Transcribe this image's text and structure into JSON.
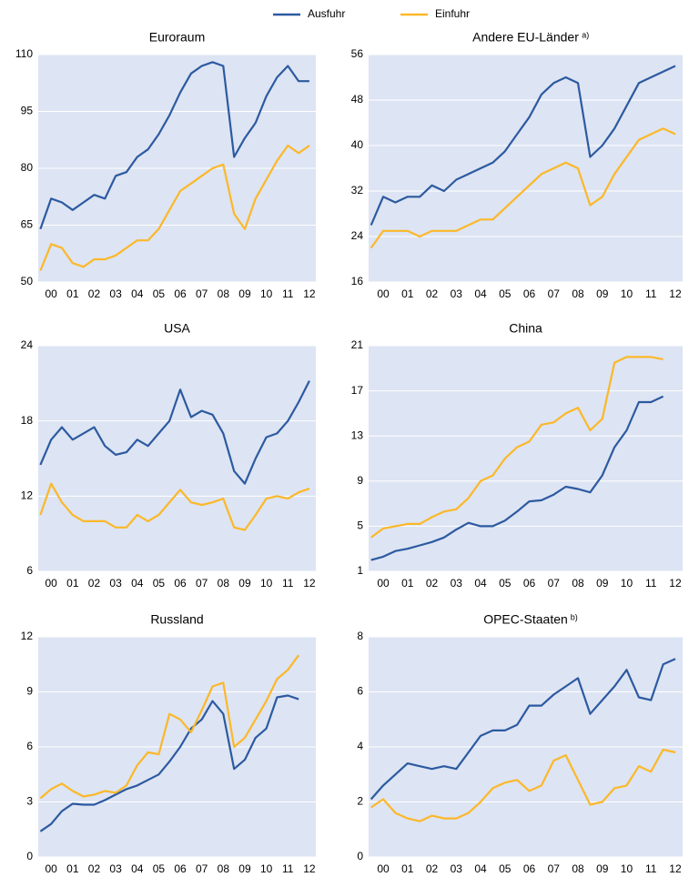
{
  "chart_data": [
    {
      "type": "line",
      "title": "Euroraum",
      "x": [
        2000,
        2000.5,
        2001,
        2001.5,
        2002,
        2002.5,
        2003,
        2003.5,
        2004,
        2004.5,
        2005,
        2005.5,
        2006,
        2006.5,
        2007,
        2007.5,
        2008,
        2008.5,
        2009,
        2009.5,
        2010,
        2010.5,
        2011,
        2011.5,
        2012,
        2012.5
      ],
      "series": [
        {
          "name": "Ausfuhr",
          "color": "#2c5aa0",
          "values": [
            64,
            72,
            71,
            69,
            71,
            73,
            72,
            78,
            79,
            83,
            85,
            89,
            94,
            100,
            105,
            107,
            108,
            107,
            83,
            88,
            92,
            99,
            104,
            107,
            103,
            103
          ]
        },
        {
          "name": "Einfuhr",
          "color": "#fbb829",
          "values": [
            53,
            60,
            59,
            55,
            54,
            56,
            56,
            57,
            59,
            61,
            61,
            64,
            69,
            74,
            76,
            78,
            80,
            81,
            68,
            64,
            72,
            77,
            82,
            86,
            84,
            86
          ]
        }
      ],
      "xlim": [
        1999.9,
        2012.8
      ],
      "xticks": [
        {
          "value": 2000.5,
          "label": "00"
        },
        {
          "value": 2001.5,
          "label": "01"
        },
        {
          "value": 2002.5,
          "label": "02"
        },
        {
          "value": 2003.5,
          "label": "03"
        },
        {
          "value": 2004.5,
          "label": "04"
        },
        {
          "value": 2005.5,
          "label": "05"
        },
        {
          "value": 2006.5,
          "label": "06"
        },
        {
          "value": 2007.5,
          "label": "07"
        },
        {
          "value": 2008.5,
          "label": "08"
        },
        {
          "value": 2009.5,
          "label": "09"
        },
        {
          "value": 2010.5,
          "label": "10"
        },
        {
          "value": 2011.5,
          "label": "11"
        },
        {
          "value": 2012.5,
          "label": "12"
        }
      ],
      "ylim": [
        50,
        110
      ],
      "yticks": [
        50,
        65,
        80,
        95,
        110
      ],
      "grid": true
    },
    {
      "type": "line",
      "title": "Andere EU-Länder",
      "title_note": "a)",
      "x": [
        2000,
        2000.5,
        2001,
        2001.5,
        2002,
        2002.5,
        2003,
        2003.5,
        2004,
        2004.5,
        2005,
        2005.5,
        2006,
        2006.5,
        2007,
        2007.5,
        2008,
        2008.5,
        2009,
        2009.5,
        2010,
        2010.5,
        2011,
        2011.5,
        2012,
        2012.5
      ],
      "series": [
        {
          "name": "Ausfuhr",
          "color": "#2c5aa0",
          "values": [
            26,
            31,
            30,
            31,
            31,
            33,
            32,
            34,
            35,
            36,
            37,
            39,
            42,
            45,
            49,
            51,
            52,
            51,
            38,
            40,
            43,
            47,
            51,
            52,
            53,
            54
          ]
        },
        {
          "name": "Einfuhr",
          "color": "#fbb829",
          "values": [
            22,
            25,
            25,
            25,
            24,
            25,
            25,
            25,
            26,
            27,
            27,
            29,
            31,
            33,
            35,
            36,
            37,
            36,
            29.5,
            31,
            35,
            38,
            41,
            42,
            43,
            42
          ]
        }
      ],
      "xlim": [
        1999.9,
        2012.8
      ],
      "xticks": [
        {
          "value": 2000.5,
          "label": "00"
        },
        {
          "value": 2001.5,
          "label": "01"
        },
        {
          "value": 2002.5,
          "label": "02"
        },
        {
          "value": 2003.5,
          "label": "03"
        },
        {
          "value": 2004.5,
          "label": "04"
        },
        {
          "value": 2005.5,
          "label": "05"
        },
        {
          "value": 2006.5,
          "label": "06"
        },
        {
          "value": 2007.5,
          "label": "07"
        },
        {
          "value": 2008.5,
          "label": "08"
        },
        {
          "value": 2009.5,
          "label": "09"
        },
        {
          "value": 2010.5,
          "label": "10"
        },
        {
          "value": 2011.5,
          "label": "11"
        },
        {
          "value": 2012.5,
          "label": "12"
        }
      ],
      "ylim": [
        16,
        56
      ],
      "yticks": [
        16,
        24,
        32,
        40,
        48,
        56
      ],
      "grid": true
    },
    {
      "type": "line",
      "title": "USA",
      "x": [
        2000,
        2000.5,
        2001,
        2001.5,
        2002,
        2002.5,
        2003,
        2003.5,
        2004,
        2004.5,
        2005,
        2005.5,
        2006,
        2006.5,
        2007,
        2007.5,
        2008,
        2008.5,
        2009,
        2009.5,
        2010,
        2010.5,
        2011,
        2011.5,
        2012,
        2012.5
      ],
      "series": [
        {
          "name": "Ausfuhr",
          "color": "#2c5aa0",
          "values": [
            14.5,
            16.5,
            17.5,
            16.5,
            17,
            17.5,
            16,
            15.3,
            15.5,
            16.5,
            16,
            17,
            18,
            20.5,
            18.3,
            18.8,
            18.5,
            17,
            14,
            13,
            15,
            16.7,
            17,
            18,
            19.5,
            21.2
          ]
        },
        {
          "name": "Einfuhr",
          "color": "#fbb829",
          "values": [
            10.5,
            13,
            11.5,
            10.5,
            10,
            10,
            10,
            9.5,
            9.5,
            10.5,
            10,
            10.5,
            11.5,
            12.5,
            11.5,
            11.3,
            11.5,
            11.8,
            9.5,
            9.3,
            10.5,
            11.8,
            12,
            11.8,
            12.3,
            12.6
          ]
        }
      ],
      "xlim": [
        1999.9,
        2012.8
      ],
      "xticks": [
        {
          "value": 2000.5,
          "label": "00"
        },
        {
          "value": 2001.5,
          "label": "01"
        },
        {
          "value": 2002.5,
          "label": "02"
        },
        {
          "value": 2003.5,
          "label": "03"
        },
        {
          "value": 2004.5,
          "label": "04"
        },
        {
          "value": 2005.5,
          "label": "05"
        },
        {
          "value": 2006.5,
          "label": "06"
        },
        {
          "value": 2007.5,
          "label": "07"
        },
        {
          "value": 2008.5,
          "label": "08"
        },
        {
          "value": 2009.5,
          "label": "09"
        },
        {
          "value": 2010.5,
          "label": "10"
        },
        {
          "value": 2011.5,
          "label": "11"
        },
        {
          "value": 2012.5,
          "label": "12"
        }
      ],
      "ylim": [
        6,
        24
      ],
      "yticks": [
        6,
        12,
        18,
        24
      ],
      "grid": true
    },
    {
      "type": "line",
      "title": "China",
      "x": [
        2000,
        2000.5,
        2001,
        2001.5,
        2002,
        2002.5,
        2003,
        2003.5,
        2004,
        2004.5,
        2005,
        2005.5,
        2006,
        2006.5,
        2007,
        2007.5,
        2008,
        2008.5,
        2009,
        2009.5,
        2010,
        2010.5,
        2011,
        2011.5,
        2012
      ],
      "series": [
        {
          "name": "Ausfuhr",
          "color": "#2c5aa0",
          "values": [
            2,
            2.3,
            2.8,
            3,
            3.3,
            3.6,
            4,
            4.7,
            5.3,
            5,
            5,
            5.5,
            6.3,
            7.2,
            7.3,
            7.8,
            8.5,
            8.3,
            8,
            9.5,
            12,
            13.5,
            16,
            16,
            16.5
          ]
        },
        {
          "name": "Einfuhr",
          "color": "#fbb829",
          "values": [
            4,
            4.8,
            5,
            5.2,
            5.2,
            5.8,
            6.3,
            6.5,
            7.5,
            9,
            9.5,
            11,
            12,
            12.5,
            14,
            14.2,
            15,
            15.5,
            13.5,
            14.5,
            19.5,
            20,
            20,
            20,
            19.8
          ]
        }
      ],
      "xlim": [
        1999.9,
        2012.8
      ],
      "xticks": [
        {
          "value": 2000.5,
          "label": "00"
        },
        {
          "value": 2001.5,
          "label": "01"
        },
        {
          "value": 2002.5,
          "label": "02"
        },
        {
          "value": 2003.5,
          "label": "03"
        },
        {
          "value": 2004.5,
          "label": "04"
        },
        {
          "value": 2005.5,
          "label": "05"
        },
        {
          "value": 2006.5,
          "label": "06"
        },
        {
          "value": 2007.5,
          "label": "07"
        },
        {
          "value": 2008.5,
          "label": "08"
        },
        {
          "value": 2009.5,
          "label": "09"
        },
        {
          "value": 2010.5,
          "label": "10"
        },
        {
          "value": 2011.5,
          "label": "11"
        },
        {
          "value": 2012.5,
          "label": "12"
        }
      ],
      "ylim": [
        1,
        21
      ],
      "yticks": [
        1,
        5,
        9,
        13,
        17,
        21
      ],
      "grid": true
    },
    {
      "type": "line",
      "title": "Russland",
      "x": [
        2000,
        2000.5,
        2001,
        2001.5,
        2002,
        2002.5,
        2003,
        2003.5,
        2004,
        2004.5,
        2005,
        2005.5,
        2006,
        2006.5,
        2007,
        2007.5,
        2008,
        2008.5,
        2009,
        2009.5,
        2010,
        2010.5,
        2011,
        2011.5,
        2012
      ],
      "series": [
        {
          "name": "Ausfuhr",
          "color": "#2c5aa0",
          "values": [
            1.4,
            1.8,
            2.5,
            2.9,
            2.85,
            2.85,
            3.1,
            3.4,
            3.7,
            3.9,
            4.2,
            4.5,
            5.2,
            6,
            7,
            7.5,
            8.5,
            7.8,
            4.8,
            5.3,
            6.5,
            7,
            8.7,
            8.8,
            8.6
          ]
        },
        {
          "name": "Einfuhr",
          "color": "#fbb829",
          "values": [
            3.2,
            3.7,
            4,
            3.6,
            3.3,
            3.4,
            3.6,
            3.5,
            3.9,
            5,
            5.7,
            5.6,
            7.8,
            7.5,
            6.8,
            8,
            9.3,
            9.5,
            6,
            6.5,
            7.5,
            8.5,
            9.7,
            10.2,
            11
          ]
        }
      ],
      "xlim": [
        1999.9,
        2012.8
      ],
      "xticks": [
        {
          "value": 2000.5,
          "label": "00"
        },
        {
          "value": 2001.5,
          "label": "01"
        },
        {
          "value": 2002.5,
          "label": "02"
        },
        {
          "value": 2003.5,
          "label": "03"
        },
        {
          "value": 2004.5,
          "label": "04"
        },
        {
          "value": 2005.5,
          "label": "05"
        },
        {
          "value": 2006.5,
          "label": "06"
        },
        {
          "value": 2007.5,
          "label": "07"
        },
        {
          "value": 2008.5,
          "label": "08"
        },
        {
          "value": 2009.5,
          "label": "09"
        },
        {
          "value": 2010.5,
          "label": "10"
        },
        {
          "value": 2011.5,
          "label": "11"
        },
        {
          "value": 2012.5,
          "label": "12"
        }
      ],
      "ylim": [
        0,
        12
      ],
      "yticks": [
        0,
        3,
        6,
        9,
        12
      ],
      "grid": true
    },
    {
      "type": "line",
      "title": "OPEC-Staaten",
      "title_note": "b)",
      "x": [
        2000,
        2000.5,
        2001,
        2001.5,
        2002,
        2002.5,
        2003,
        2003.5,
        2004,
        2004.5,
        2005,
        2005.5,
        2006,
        2006.5,
        2007,
        2007.5,
        2008,
        2008.5,
        2009,
        2009.5,
        2010,
        2010.5,
        2011,
        2011.5,
        2012,
        2012.5
      ],
      "series": [
        {
          "name": "Ausfuhr",
          "color": "#2c5aa0",
          "values": [
            2.1,
            2.6,
            3,
            3.4,
            3.3,
            3.2,
            3.3,
            3.2,
            3.8,
            4.4,
            4.6,
            4.6,
            4.8,
            5.5,
            5.5,
            5.9,
            6.2,
            6.5,
            5.2,
            5.7,
            6.2,
            6.8,
            5.8,
            5.7,
            7,
            7.2
          ]
        },
        {
          "name": "Einfuhr",
          "color": "#fbb829",
          "values": [
            1.8,
            2.1,
            1.6,
            1.4,
            1.3,
            1.5,
            1.4,
            1.4,
            1.6,
            2,
            2.5,
            2.7,
            2.8,
            2.4,
            2.6,
            3.5,
            3.7,
            2.8,
            1.9,
            2,
            2.5,
            2.6,
            3.3,
            3.1,
            3.9,
            3.8
          ]
        }
      ],
      "xlim": [
        1999.9,
        2012.8
      ],
      "xticks": [
        {
          "value": 2000.5,
          "label": "00"
        },
        {
          "value": 2001.5,
          "label": "01"
        },
        {
          "value": 2002.5,
          "label": "02"
        },
        {
          "value": 2003.5,
          "label": "03"
        },
        {
          "value": 2004.5,
          "label": "04"
        },
        {
          "value": 2005.5,
          "label": "05"
        },
        {
          "value": 2006.5,
          "label": "06"
        },
        {
          "value": 2007.5,
          "label": "07"
        },
        {
          "value": 2008.5,
          "label": "08"
        },
        {
          "value": 2009.5,
          "label": "09"
        },
        {
          "value": 2010.5,
          "label": "10"
        },
        {
          "value": 2011.5,
          "label": "11"
        },
        {
          "value": 2012.5,
          "label": "12"
        }
      ],
      "ylim": [
        0,
        8
      ],
      "yticks": [
        0,
        2,
        4,
        6,
        8
      ],
      "grid": true
    }
  ]
}
